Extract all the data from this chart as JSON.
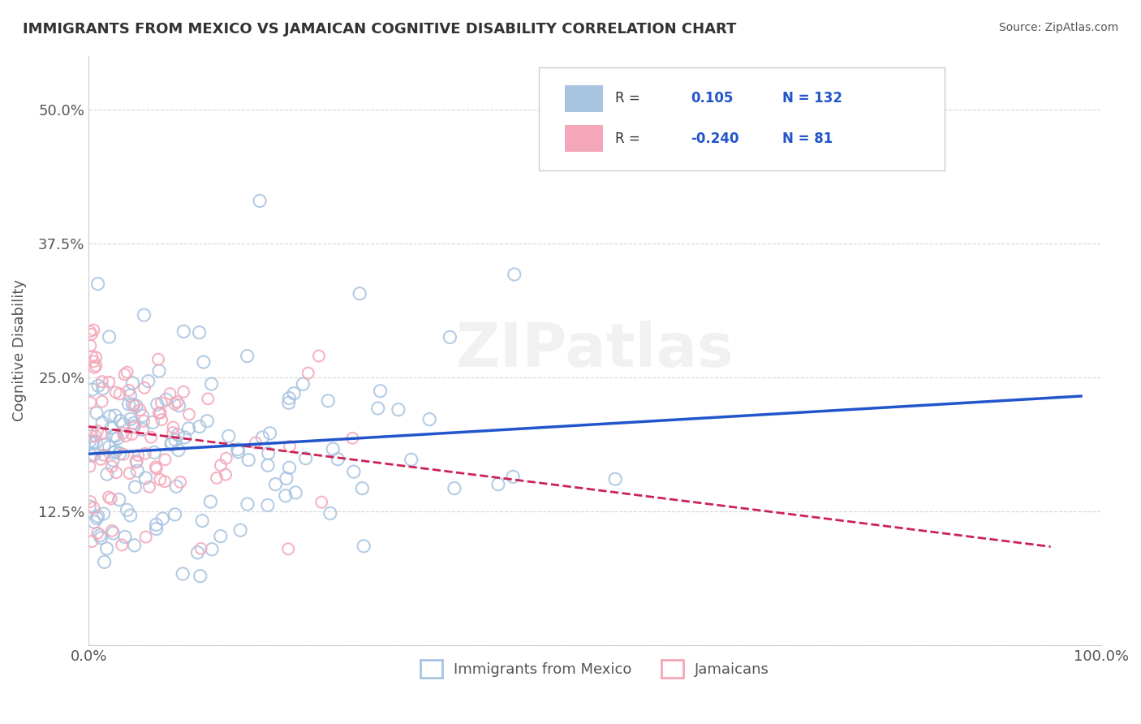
{
  "title": "IMMIGRANTS FROM MEXICO VS JAMAICAN COGNITIVE DISABILITY CORRELATION CHART",
  "source": "Source: ZipAtlas.com",
  "ylabel": "Cognitive Disability",
  "xlim": [
    0.0,
    1.0
  ],
  "ylim": [
    0.0,
    0.55
  ],
  "yticks": [
    0.0,
    0.125,
    0.25,
    0.375,
    0.5
  ],
  "ytick_labels": [
    "",
    "12.5%",
    "25.0%",
    "37.5%",
    "50.0%"
  ],
  "xtick_labels": [
    "0.0%",
    "100.0%"
  ],
  "r_mexico": 0.105,
  "n_mexico": 132,
  "r_jamaica": -0.24,
  "n_jamaica": 81,
  "blue_color": "#a8c4e0",
  "pink_color": "#f4a7b9",
  "blue_line_color": "#2255cc",
  "pink_line_color": "#cc2255",
  "watermark": "ZIPatlas",
  "background_color": "#ffffff",
  "grid_color": "#cccccc",
  "title_color": "#333333",
  "seed": 42
}
